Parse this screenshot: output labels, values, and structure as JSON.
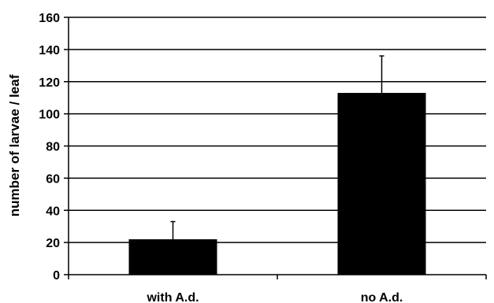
{
  "chart_data": {
    "type": "bar",
    "title": "",
    "xlabel": "",
    "ylabel": "number of larvae / leaf",
    "categories": [
      "with A.d.",
      "no A.d."
    ],
    "values": [
      22,
      113
    ],
    "error_upper": [
      33,
      136
    ],
    "ylim": [
      0,
      160
    ],
    "yticks": [
      0,
      20,
      40,
      60,
      80,
      100,
      120,
      140,
      160
    ],
    "grid": true,
    "bar_color": "#000000"
  }
}
